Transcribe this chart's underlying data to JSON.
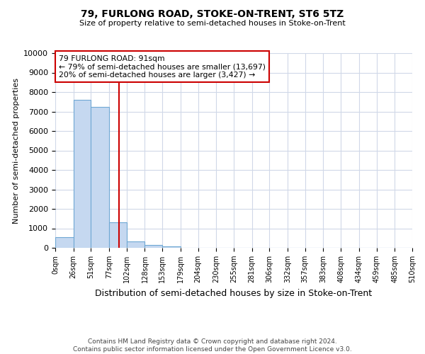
{
  "title": "79, FURLONG ROAD, STOKE-ON-TRENT, ST6 5TZ",
  "subtitle": "Size of property relative to semi-detached houses in Stoke-on-Trent",
  "xlabel": "Distribution of semi-detached houses by size in Stoke-on-Trent",
  "ylabel": "Number of semi-detached properties",
  "bin_edges": [
    0,
    26,
    51,
    77,
    102,
    128,
    153,
    179,
    204,
    230,
    255,
    281,
    306,
    332,
    357,
    383,
    408,
    434,
    459,
    485,
    510
  ],
  "bar_heights": [
    550,
    7600,
    7250,
    1320,
    340,
    130,
    70,
    0,
    0,
    0,
    0,
    0,
    0,
    0,
    0,
    0,
    0,
    0,
    0,
    0
  ],
  "bar_color": "#c5d8f0",
  "bar_edge_color": "#6fa8d4",
  "property_value": 91,
  "vline_color": "#cc0000",
  "annotation_line1": "79 FURLONG ROAD: 91sqm",
  "annotation_line2": "← 79% of semi-detached houses are smaller (13,697)",
  "annotation_line3": "20% of semi-detached houses are larger (3,427) →",
  "annotation_box_color": "#ffffff",
  "annotation_box_edge_color": "#cc0000",
  "ylim": [
    0,
    10000
  ],
  "yticks": [
    0,
    1000,
    2000,
    3000,
    4000,
    5000,
    6000,
    7000,
    8000,
    9000,
    10000
  ],
  "xtick_labels": [
    "0sqm",
    "26sqm",
    "51sqm",
    "77sqm",
    "102sqm",
    "128sqm",
    "153sqm",
    "179sqm",
    "204sqm",
    "230sqm",
    "255sqm",
    "281sqm",
    "306sqm",
    "332sqm",
    "357sqm",
    "383sqm",
    "408sqm",
    "434sqm",
    "459sqm",
    "485sqm",
    "510sqm"
  ],
  "footer_text": "Contains HM Land Registry data © Crown copyright and database right 2024.\nContains public sector information licensed under the Open Government Licence v3.0.",
  "background_color": "#ffffff",
  "grid_color": "#d0d8e8"
}
